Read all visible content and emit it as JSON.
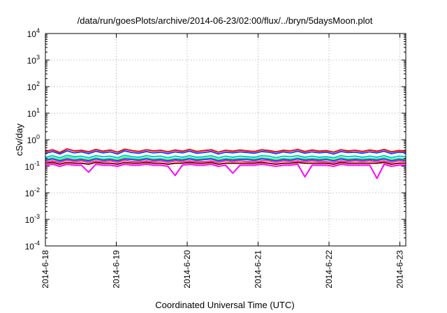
{
  "chart_data": {
    "type": "line",
    "title": "/data/run/goesPlots/archive/2014-06-23/02:00/flux/../bryn/5daysMoon.plot",
    "xlabel": "Coordinated Universal Time (UTC)",
    "ylabel": "cSv/day",
    "yscale": "log",
    "ylim": [
      0.0001,
      10000
    ],
    "xlim": [
      "2014-06-18 00:00",
      "2014-06-23 02:00"
    ],
    "grid": true,
    "y_ticks": [
      {
        "base": "10",
        "exp": "-4"
      },
      {
        "base": "10",
        "exp": "-3"
      },
      {
        "base": "10",
        "exp": "-2"
      },
      {
        "base": "10",
        "exp": "-1"
      },
      {
        "base": "10",
        "exp": "0"
      },
      {
        "base": "10",
        "exp": "1"
      },
      {
        "base": "10",
        "exp": "2"
      },
      {
        "base": "10",
        "exp": "3"
      },
      {
        "base": "10",
        "exp": "4"
      }
    ],
    "x_ticks": [
      "2014-6-18",
      "2014-6-19",
      "2014-6-20",
      "2014-6-21",
      "2014-6-22",
      "2014-6-23"
    ],
    "series": [
      {
        "color": "#ff0000",
        "values": [
          0.36,
          0.42,
          0.33,
          0.45,
          0.38,
          0.4,
          0.35,
          0.43,
          0.37,
          0.41,
          0.34,
          0.44,
          0.39,
          0.36,
          0.42,
          0.38,
          0.4,
          0.35,
          0.41,
          0.37,
          0.43,
          0.36,
          0.39,
          0.42,
          0.34,
          0.4,
          0.37,
          0.41,
          0.38,
          0.36,
          0.42,
          0.39,
          0.35,
          0.4,
          0.38,
          0.43,
          0.36,
          0.41,
          0.37,
          0.39,
          0.34,
          0.42,
          0.38,
          0.4,
          0.36,
          0.41,
          0.37,
          0.43,
          0.35,
          0.39,
          0.38
        ]
      },
      {
        "color": "#1f3fff",
        "values": [
          0.31,
          0.36,
          0.29,
          0.38,
          0.32,
          0.35,
          0.3,
          0.37,
          0.32,
          0.35,
          0.29,
          0.38,
          0.33,
          0.31,
          0.36,
          0.32,
          0.34,
          0.3,
          0.35,
          0.32,
          0.37,
          0.31,
          0.33,
          0.36,
          0.29,
          0.34,
          0.32,
          0.35,
          0.33,
          0.31,
          0.36,
          0.34,
          0.3,
          0.35,
          0.32,
          0.37,
          0.31,
          0.35,
          0.32,
          0.34,
          0.29,
          0.36,
          0.33,
          0.34,
          0.31,
          0.35,
          0.32,
          0.37,
          0.3,
          0.34,
          0.33
        ]
      },
      {
        "color": "#00cccc",
        "values": [
          0.22,
          0.25,
          0.21,
          0.26,
          0.23,
          0.24,
          0.21,
          0.25,
          0.23,
          0.24,
          0.21,
          0.26,
          0.23,
          0.22,
          0.25,
          0.23,
          0.24,
          0.21,
          0.24,
          0.22,
          0.25,
          0.22,
          0.23,
          0.25,
          0.21,
          0.24,
          0.22,
          0.24,
          0.23,
          0.22,
          0.25,
          0.24,
          0.21,
          0.24,
          0.23,
          0.25,
          0.22,
          0.24,
          0.22,
          0.23,
          0.21,
          0.25,
          0.23,
          0.24,
          0.22,
          0.24,
          0.22,
          0.25,
          0.21,
          0.24,
          0.23
        ]
      },
      {
        "color": "#33ff66",
        "values": [
          0.19,
          0.21,
          0.18,
          0.22,
          0.2,
          0.2,
          0.18,
          0.21,
          0.19,
          0.2,
          0.18,
          0.22,
          0.2,
          0.19,
          0.21,
          0.19,
          0.2,
          0.18,
          0.2,
          0.19,
          0.21,
          0.19,
          0.2,
          0.21,
          0.18,
          0.2,
          0.19,
          0.2,
          0.2,
          0.19,
          0.21,
          0.2,
          0.18,
          0.2,
          0.19,
          0.21,
          0.19,
          0.2,
          0.19,
          0.2,
          0.18,
          0.21,
          0.19,
          0.2,
          0.19,
          0.2,
          0.19,
          0.21,
          0.18,
          0.2,
          0.19
        ]
      },
      {
        "color": "#3333ff",
        "values": [
          0.17,
          0.19,
          0.16,
          0.19,
          0.17,
          0.18,
          0.16,
          0.19,
          0.17,
          0.18,
          0.16,
          0.19,
          0.18,
          0.17,
          0.19,
          0.17,
          0.18,
          0.16,
          0.18,
          0.17,
          0.19,
          0.17,
          0.18,
          0.19,
          0.16,
          0.18,
          0.17,
          0.18,
          0.18,
          0.17,
          0.19,
          0.18,
          0.16,
          0.18,
          0.17,
          0.19,
          0.17,
          0.18,
          0.17,
          0.18,
          0.16,
          0.19,
          0.17,
          0.18,
          0.17,
          0.18,
          0.17,
          0.19,
          0.16,
          0.18,
          0.17
        ]
      },
      {
        "color": "#ff3399",
        "values": [
          0.15,
          0.16,
          0.14,
          0.17,
          0.15,
          0.16,
          0.14,
          0.16,
          0.15,
          0.16,
          0.14,
          0.17,
          0.15,
          0.15,
          0.16,
          0.15,
          0.16,
          0.14,
          0.16,
          0.15,
          0.16,
          0.15,
          0.15,
          0.16,
          0.14,
          0.16,
          0.15,
          0.16,
          0.15,
          0.15,
          0.16,
          0.16,
          0.14,
          0.16,
          0.15,
          0.16,
          0.15,
          0.16,
          0.15,
          0.15,
          0.14,
          0.16,
          0.15,
          0.16,
          0.15,
          0.16,
          0.15,
          0.16,
          0.14,
          0.16,
          0.15
        ]
      },
      {
        "color": "#800000",
        "values": [
          0.13,
          0.14,
          0.12,
          0.14,
          0.13,
          0.13,
          0.12,
          0.14,
          0.13,
          0.13,
          0.12,
          0.14,
          0.13,
          0.13,
          0.14,
          0.13,
          0.13,
          0.12,
          0.13,
          0.13,
          0.14,
          0.13,
          0.13,
          0.14,
          0.12,
          0.13,
          0.13,
          0.13,
          0.13,
          0.13,
          0.14,
          0.13,
          0.12,
          0.13,
          0.13,
          0.14,
          0.13,
          0.13,
          0.13,
          0.13,
          0.12,
          0.14,
          0.13,
          0.13,
          0.13,
          0.13,
          0.13,
          0.14,
          0.12,
          0.13,
          0.13
        ]
      },
      {
        "color": "#ff00ff",
        "values": [
          0.11,
          0.12,
          0.1,
          0.12,
          0.11,
          0.11,
          0.06,
          0.12,
          0.11,
          0.11,
          0.1,
          0.12,
          0.11,
          0.11,
          0.12,
          0.11,
          0.11,
          0.1,
          0.045,
          0.11,
          0.12,
          0.11,
          0.11,
          0.12,
          0.1,
          0.11,
          0.055,
          0.11,
          0.11,
          0.11,
          0.12,
          0.11,
          0.1,
          0.11,
          0.11,
          0.12,
          0.04,
          0.11,
          0.11,
          0.11,
          0.1,
          0.12,
          0.11,
          0.11,
          0.11,
          0.11,
          0.035,
          0.12,
          0.1,
          0.11,
          0.11
        ]
      }
    ]
  }
}
